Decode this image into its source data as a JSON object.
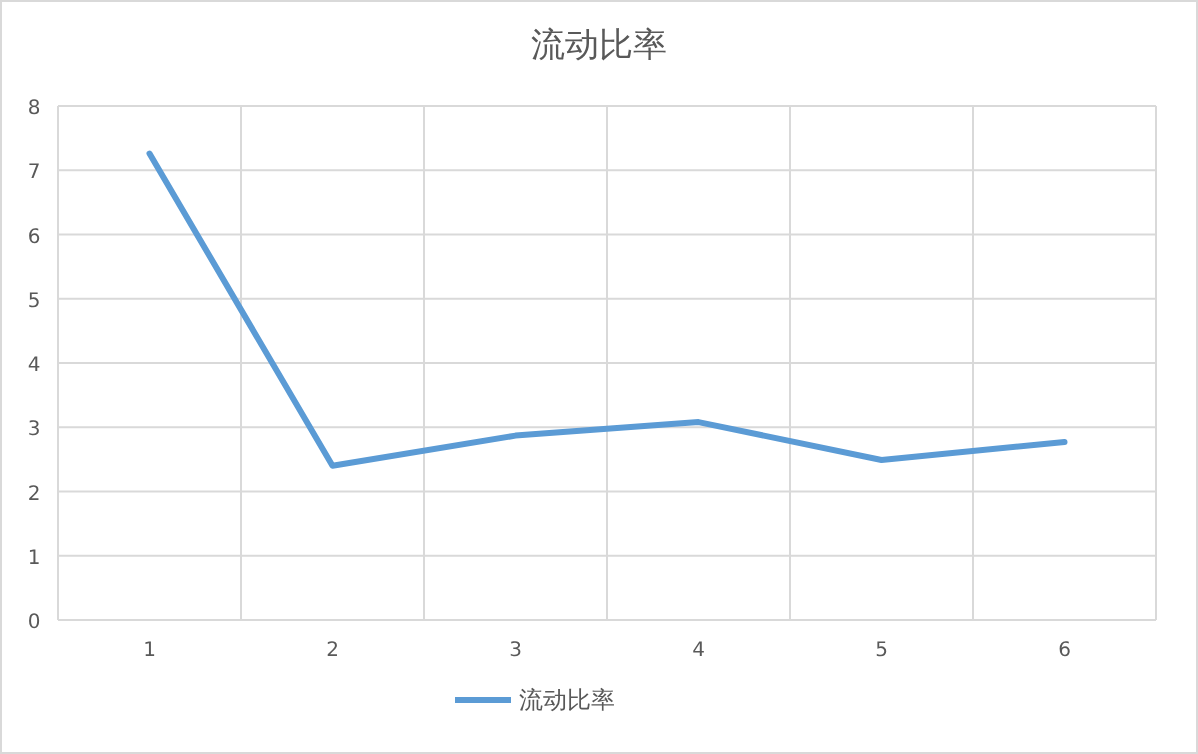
{
  "chart_data": {
    "type": "line",
    "title": "流动比率",
    "categories": [
      "1",
      "2",
      "3",
      "4",
      "5",
      "6"
    ],
    "series": [
      {
        "name": "流动比率",
        "color": "#5b9bd5",
        "values": [
          7.26,
          2.4,
          2.87,
          3.08,
          2.49,
          2.77
        ]
      }
    ],
    "ylim": [
      0,
      8
    ],
    "yticks": [
      0,
      1,
      2,
      3,
      4,
      5,
      6,
      7,
      8
    ],
    "grid": true,
    "legend": "bottom",
    "marker": "none",
    "line_style": "solid"
  }
}
